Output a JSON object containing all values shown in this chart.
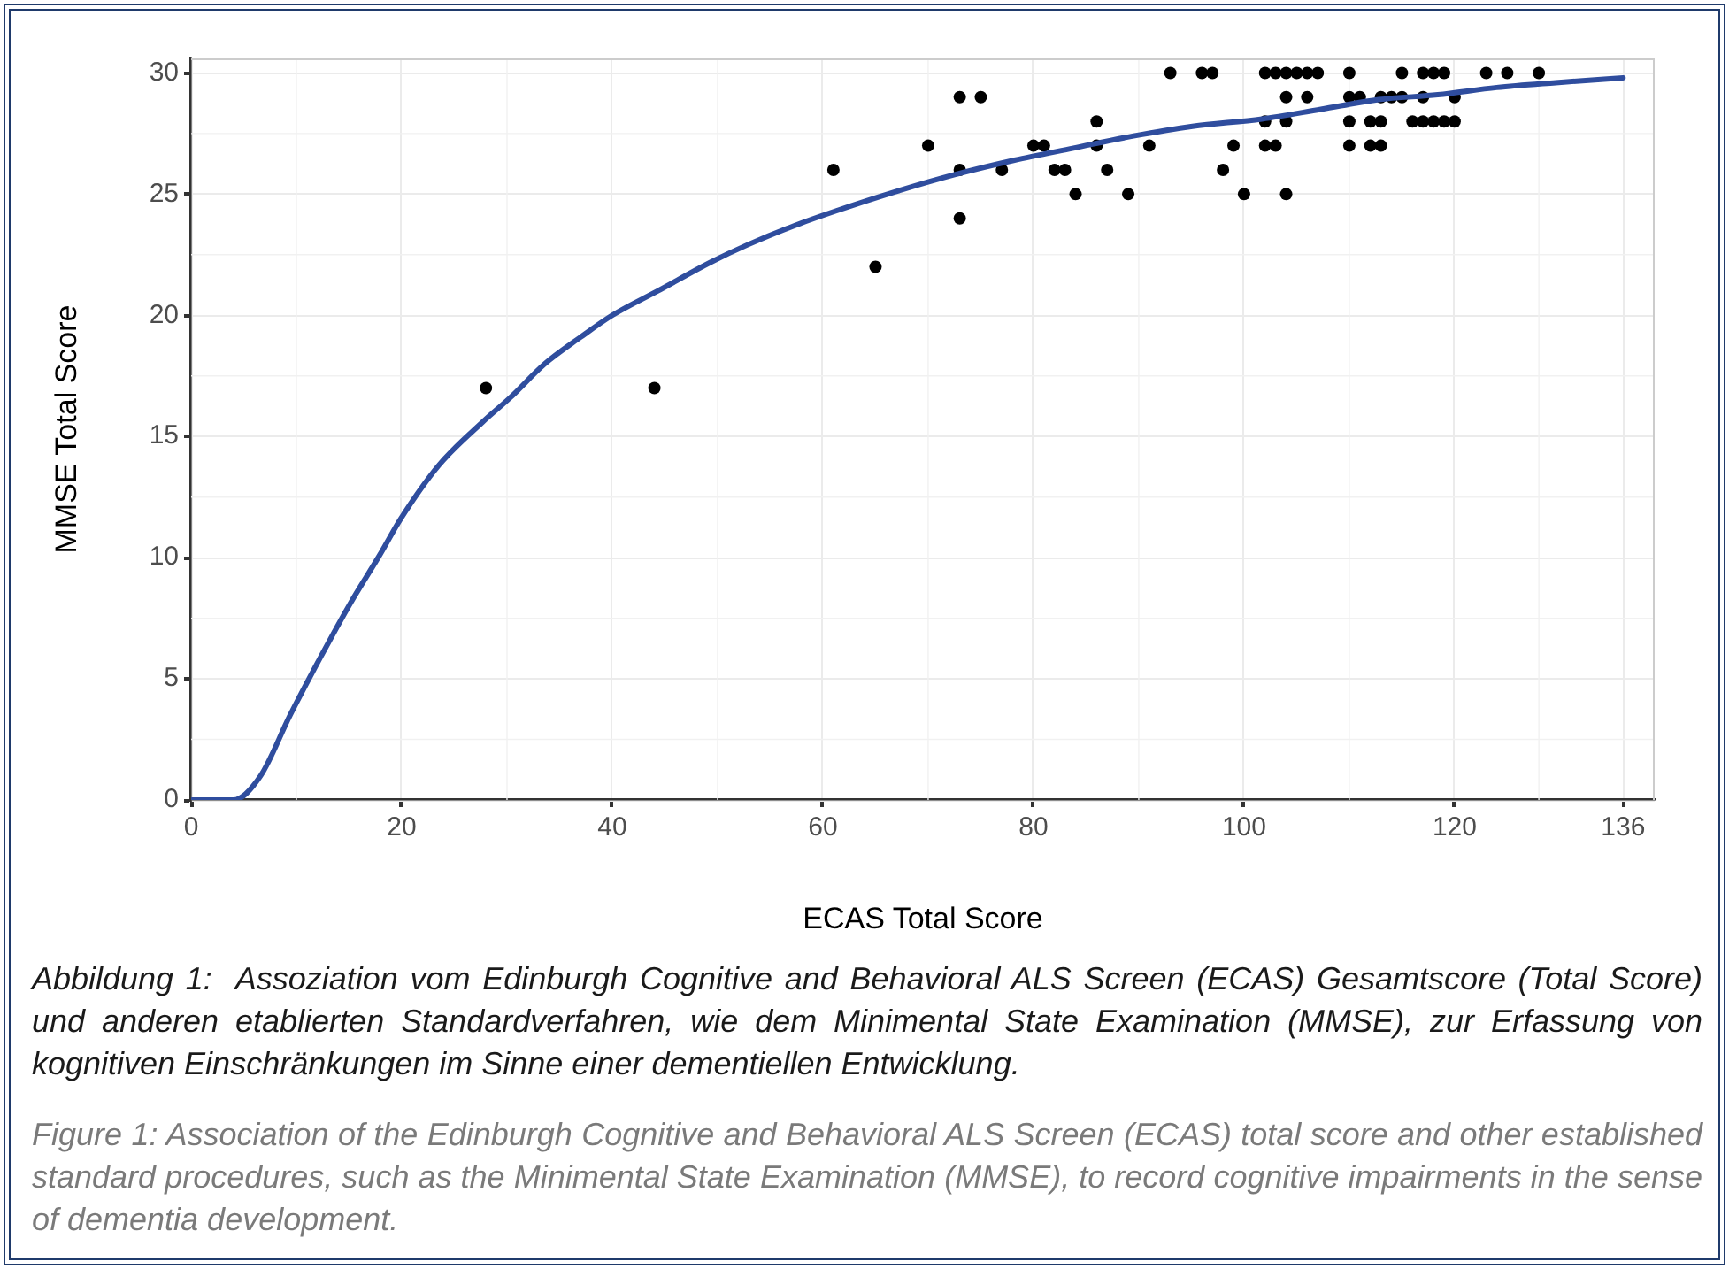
{
  "chart_data": {
    "type": "scatter",
    "xlabel": "ECAS Total Score",
    "ylabel": "MMSE Total Score",
    "annotations": [
      "Abbildung 1:  Assoziation vom Edinburgh Cognitive and Behavioral ALS Screen (ECAS) Gesamtscore (Total Score) und anderen etablierten Standardverfahren, wie dem Minimental State Examination (MMSE), zur Erfassung von kognitiven Einschränkungen im Sinne einer dementiellen Entwicklung.",
      "Figure 1: Association of the Edinburgh Cognitive and Behavioral ALS Screen (ECAS) total score and other established standard procedures, such as the Minimental State Examination (MMSE), to record cognitive impairments in the sense of dementia development."
    ],
    "xlim": [
      0,
      139
    ],
    "ylim": [
      0,
      30.6
    ],
    "xticks": [
      0,
      20,
      40,
      60,
      80,
      100,
      120,
      136
    ],
    "yticks": [
      0,
      5,
      10,
      15,
      20,
      25,
      30
    ],
    "grid": true,
    "series": [
      {
        "color": "#000000",
        "marker": "circle",
        "x": [
          28,
          44,
          61,
          65,
          70,
          73,
          75,
          73,
          73,
          77,
          80,
          81,
          82,
          83,
          84,
          86,
          86,
          87,
          89,
          91,
          93,
          96,
          97,
          98,
          99,
          100,
          102,
          103,
          104,
          105,
          106,
          107,
          110,
          115,
          117,
          118,
          119,
          123,
          125,
          128,
          104,
          106,
          110,
          111,
          113,
          114,
          115,
          117,
          120,
          102,
          104,
          110,
          112,
          113,
          116,
          117,
          118,
          119,
          120,
          102,
          103,
          110,
          112,
          113,
          104
        ],
        "values": [
          17,
          17,
          26,
          22,
          27,
          29,
          29,
          26,
          24,
          26,
          27,
          27,
          26,
          26,
          25,
          28,
          27,
          26,
          25,
          27,
          30,
          30,
          30,
          26,
          27,
          25,
          30,
          30,
          30,
          30,
          30,
          30,
          30,
          30,
          30,
          30,
          30,
          30,
          30,
          30,
          29,
          29,
          29,
          29,
          29,
          29,
          29,
          29,
          29,
          28,
          28,
          28,
          28,
          28,
          28,
          28,
          28,
          28,
          28,
          27,
          27,
          27,
          27,
          27,
          25
        ]
      },
      {
        "type": "line",
        "color": "#2f4d9e",
        "marker": "none",
        "x": [
          0,
          4,
          6.6,
          9.4,
          12.3,
          15.1,
          17.9,
          19.9,
          23.5,
          27.7,
          30.3,
          33.6,
          37,
          40,
          44.3,
          49.4,
          52.8,
          57.3,
          61.2,
          66.9,
          72.5,
          78.2,
          83.8,
          89.5,
          95.1,
          101.7,
          107.3,
          112.8,
          118.4,
          124,
          129.6,
          136
        ],
        "values": [
          0,
          0,
          1.0,
          3.5,
          5.9,
          8.1,
          10.1,
          11.6,
          13.8,
          15.6,
          16.6,
          18.0,
          19.1,
          20.0,
          21.0,
          22.2,
          22.9,
          23.7,
          24.3,
          25.1,
          25.8,
          26.4,
          26.9,
          27.4,
          27.8,
          28.1,
          28.5,
          28.9,
          29.1,
          29.4,
          29.6,
          29.8
        ]
      }
    ]
  }
}
